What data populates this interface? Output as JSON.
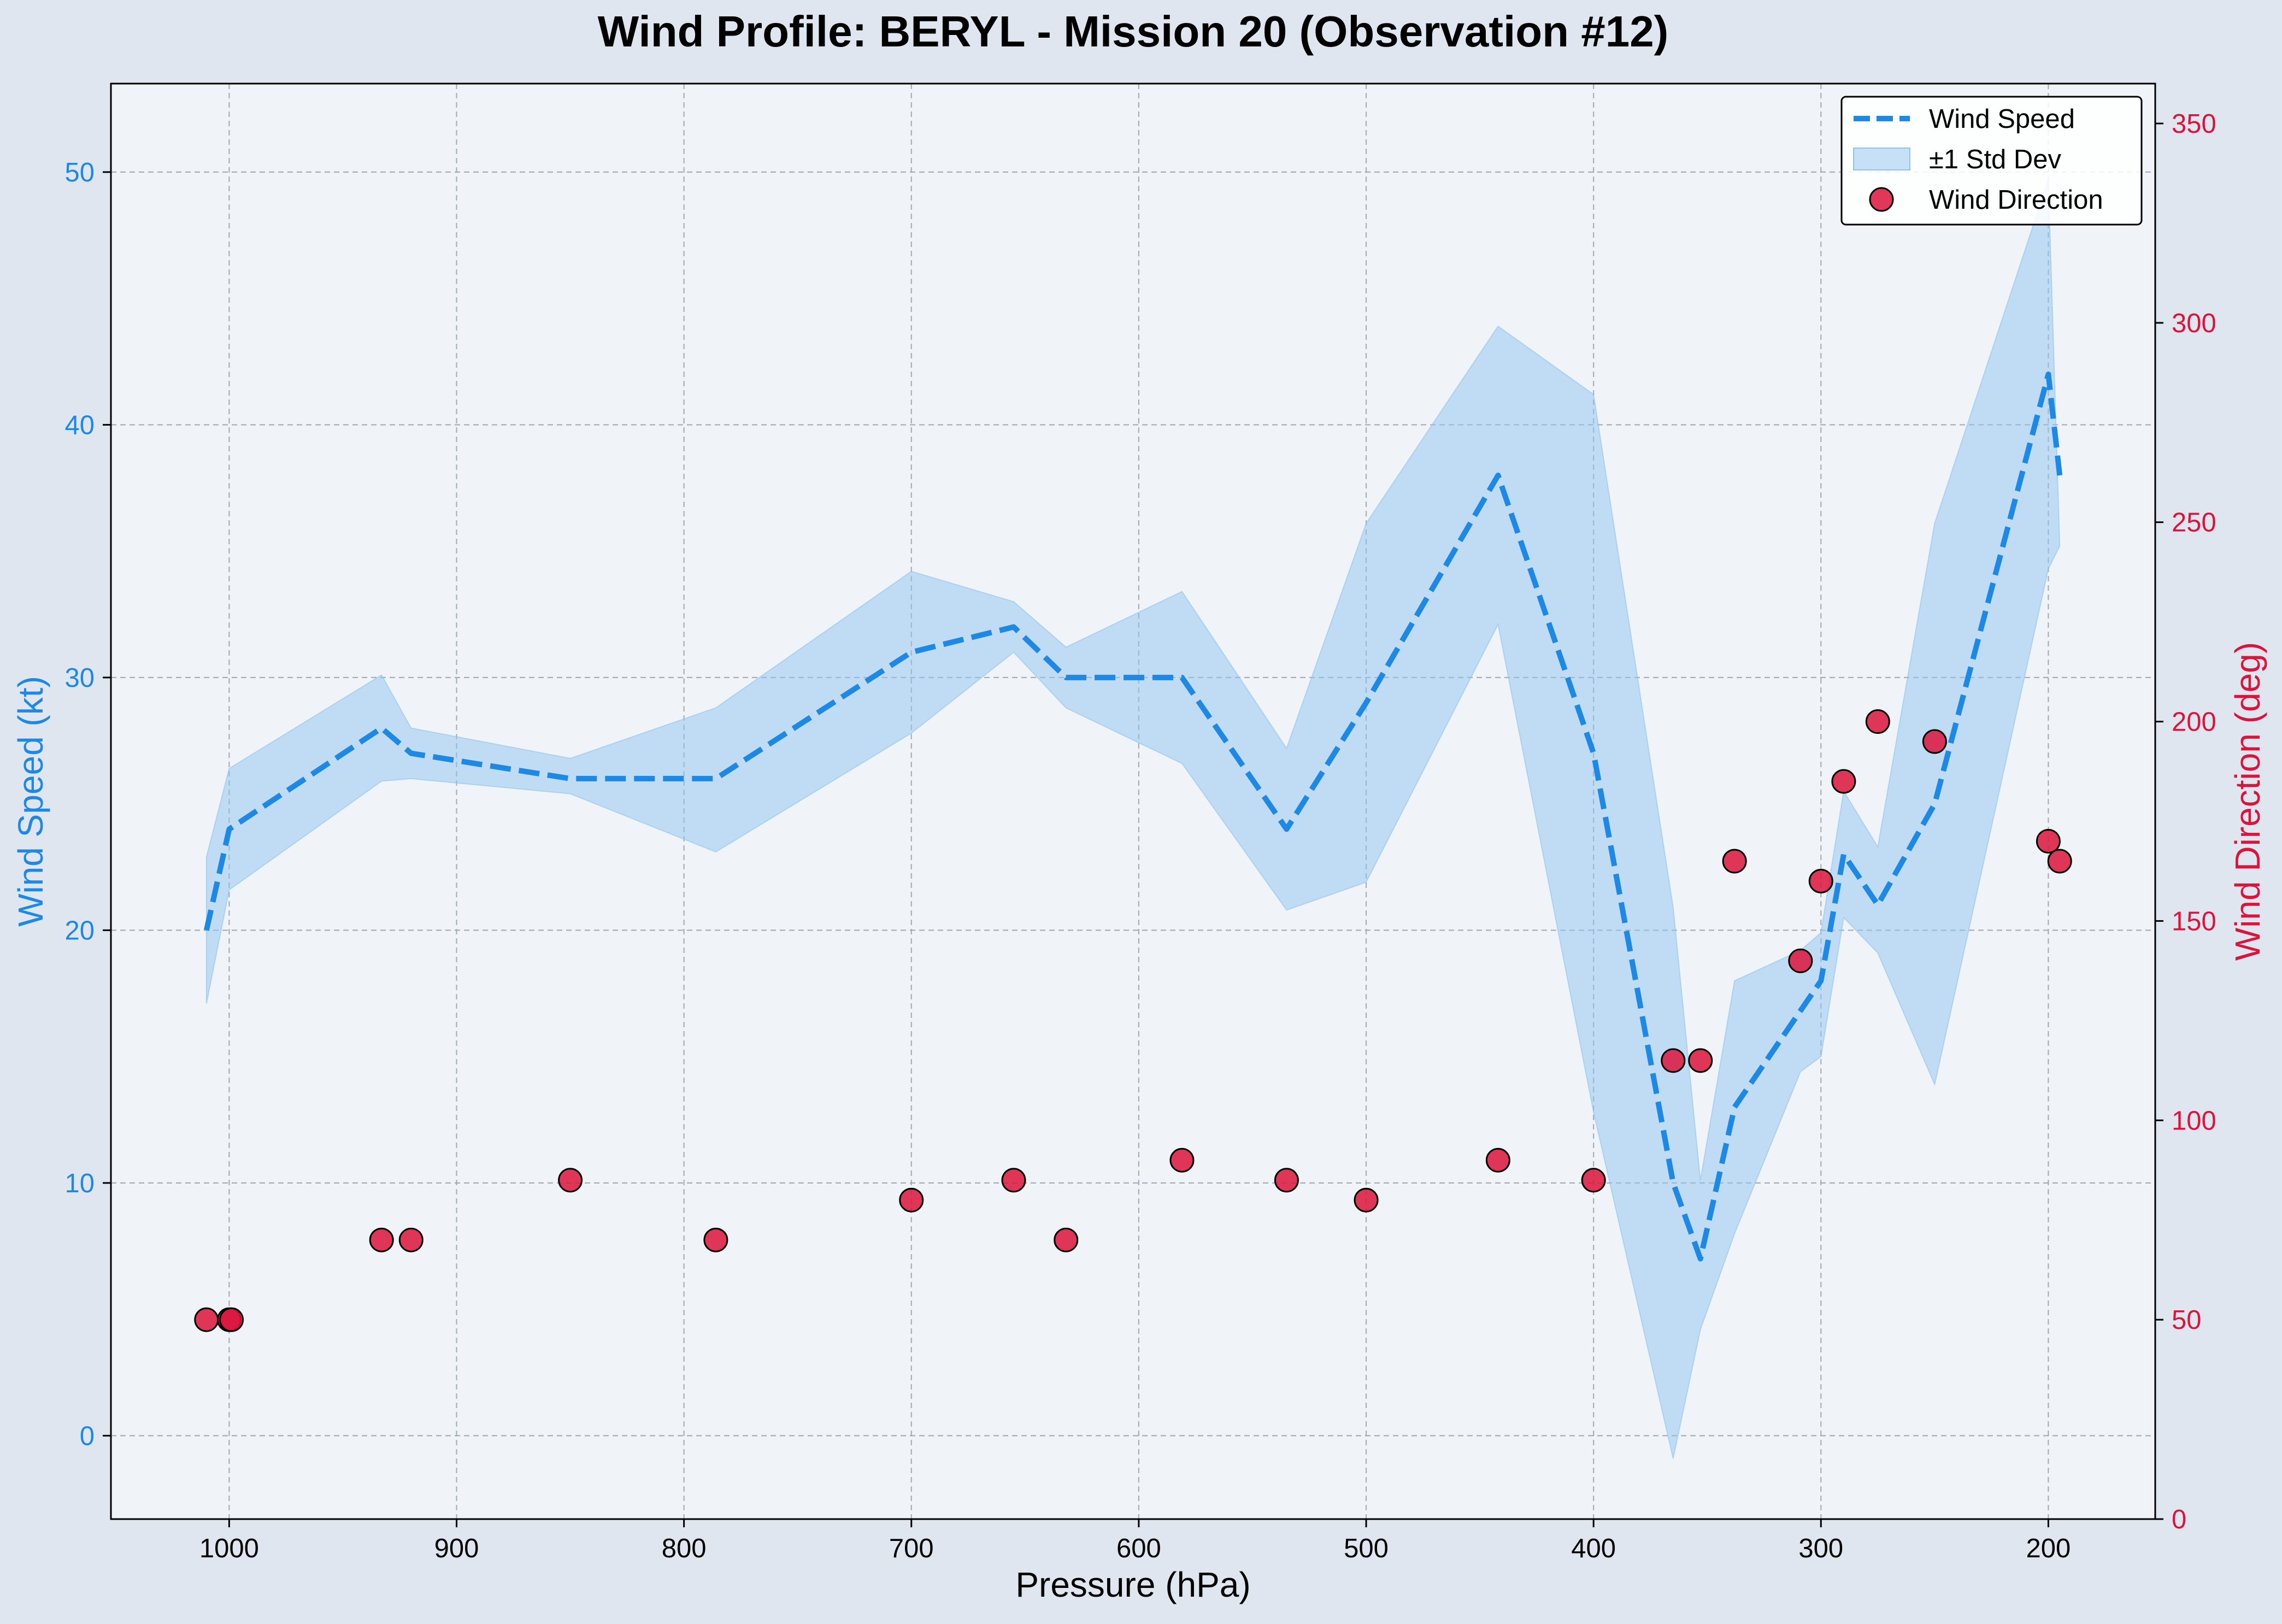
{
  "chart_data": {
    "type": "line",
    "title": "Wind Profile: BERYL - Mission 20 (Observation #12)",
    "xlabel": "Pressure (hPa)",
    "ylabel_left": "Wind Speed (kt)",
    "ylabel_right": "Wind Direction (deg)",
    "x_inverted": true,
    "xlim": [
      1052,
      153
    ],
    "ylim_left": [
      -3.3,
      53.5
    ],
    "ylim_right": [
      0,
      360
    ],
    "x_ticks": [
      1000,
      900,
      800,
      700,
      600,
      500,
      400,
      300,
      200
    ],
    "y_ticks_left": [
      0,
      10,
      20,
      30,
      40,
      50
    ],
    "y_ticks_right": [
      0,
      50,
      100,
      150,
      200,
      250,
      300,
      350
    ],
    "grid": true,
    "legend_position": "top-right",
    "legend": [
      "Wind Speed",
      "±1 Std Dev",
      "Wind Direction"
    ],
    "colors": {
      "wind_speed": "#1e88e5",
      "std_band": "#90c3f0",
      "wind_direction": "#dc143c",
      "left_axis": "#1e88e5",
      "right_axis": "#dc143c",
      "plot_bg": "#f0f4f9",
      "figure_bg": "#e0e6ef"
    },
    "series": [
      {
        "name": "Wind Speed",
        "axis": "left",
        "style": "dashed",
        "x": [
          1010,
          1000,
          933,
          920,
          850,
          786,
          700,
          655,
          632,
          581,
          535,
          500,
          442,
          400,
          365,
          353,
          338,
          300,
          290,
          275,
          250,
          200,
          195
        ],
        "y": [
          20,
          24,
          28,
          27,
          26,
          26,
          31,
          32,
          30,
          30,
          24,
          29,
          38,
          27,
          10,
          7,
          13,
          18,
          23,
          21,
          25,
          42,
          38
        ]
      },
      {
        "name": "±1 Std Dev",
        "axis": "left",
        "type": "area",
        "x": [
          1010,
          1000,
          933,
          920,
          850,
          786,
          700,
          655,
          632,
          581,
          535,
          500,
          442,
          400,
          365,
          353,
          338,
          309,
          300,
          290,
          275,
          250,
          200,
          195
        ],
        "upper": [
          22.9,
          26.4,
          30.1,
          28.0,
          26.8,
          28.8,
          34.2,
          33.0,
          31.2,
          33.4,
          27.2,
          36.1,
          43.9,
          41.2,
          20.9,
          10.1,
          18.0,
          19.2,
          19.9,
          25.5,
          23.3,
          36.1,
          49.7,
          35.2
        ],
        "lower": [
          17.1,
          21.6,
          25.9,
          26.0,
          25.4,
          23.1,
          27.8,
          31.0,
          28.8,
          26.6,
          20.8,
          21.9,
          32.1,
          12.8,
          -0.9,
          4.2,
          8.0,
          14.4,
          15.0,
          20.5,
          19.1,
          13.9,
          34.3,
          35.2
        ]
      },
      {
        "name": "Wind Direction",
        "axis": "right",
        "type": "scatter",
        "x": [
          1010,
          1000,
          999,
          933,
          920,
          850,
          786,
          700,
          655,
          632,
          581,
          535,
          500,
          442,
          400,
          365,
          353,
          338,
          309,
          300,
          290,
          275,
          250,
          200,
          195
        ],
        "y": [
          50,
          50,
          50,
          70,
          70,
          85,
          70,
          80,
          85,
          70,
          90,
          85,
          80,
          90,
          85,
          115,
          115,
          165,
          140,
          160,
          185,
          200,
          195,
          170,
          165
        ]
      }
    ]
  }
}
